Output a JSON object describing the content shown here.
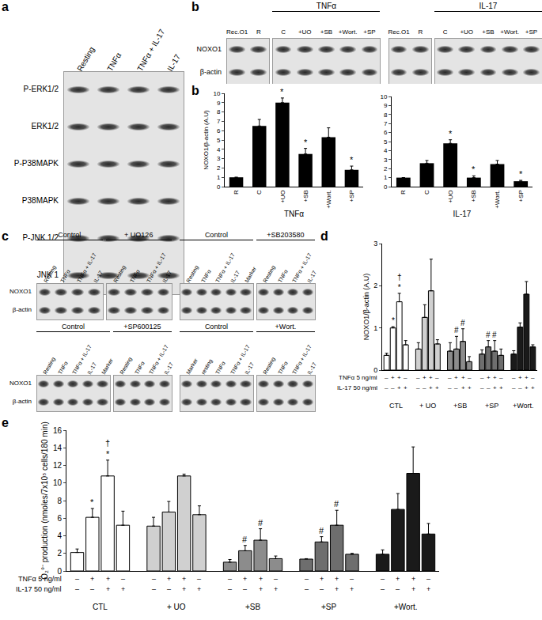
{
  "chart_data": [
    {
      "panel": "b",
      "type": "bar",
      "categories": [
        "R",
        "C",
        "+UO",
        "+SB",
        "+Wort.",
        "+SP"
      ],
      "values": [
        1,
        6.5,
        9,
        3.5,
        5.3,
        1.8
      ],
      "errors": [
        0,
        0.7,
        0.5,
        0.6,
        1.0,
        0.4
      ],
      "color": "#000000",
      "ylim": [
        0,
        10
      ],
      "yticks": [
        0,
        1,
        2,
        3,
        4,
        5,
        6,
        7,
        8,
        9,
        10
      ],
      "y_label": "NOXO1/β-actin (A.U)",
      "x_label": "TNFα",
      "annotations": [
        {
          "category": "+UO",
          "text": [
            "*"
          ]
        },
        {
          "category": "+SB",
          "text": [
            "*"
          ]
        },
        {
          "category": "+SP",
          "text": [
            "*"
          ]
        }
      ]
    },
    {
      "type": "bar",
      "categories": [
        "R",
        "C",
        "+UO",
        "+SB",
        "+Wort.",
        "+SP"
      ],
      "values": [
        1,
        2.6,
        4.8,
        1.0,
        2.5,
        0.6
      ],
      "errors": [
        0,
        0.3,
        0.4,
        0.2,
        0.4,
        0.1
      ],
      "color": "#000000",
      "ylim": [
        0,
        10
      ],
      "yticks": [
        0,
        1,
        2,
        3,
        4,
        5,
        6,
        7,
        8,
        9,
        10
      ],
      "x_label": "IL-17",
      "annotations": [
        {
          "category": "+UO",
          "text": [
            "*"
          ]
        },
        {
          "category": "+SB",
          "text": [
            "*"
          ]
        },
        {
          "category": "+SP",
          "text": [
            "*"
          ]
        }
      ]
    },
    {
      "panel": "d",
      "type": "grouped_bar",
      "groups": [
        {
          "name": "CTL",
          "color": "#ffffff",
          "values": [
            0.35,
            1.0,
            1.62,
            0.6
          ],
          "errors": [
            0.05,
            0.03,
            0.2,
            0.1
          ]
        },
        {
          "name": "+ UO",
          "color": "#d0d0d0",
          "values": [
            0.5,
            1.25,
            1.88,
            0.62
          ],
          "errors": [
            0.15,
            0.3,
            0.75,
            0.1
          ]
        },
        {
          "name": "+SB",
          "color": "#8c8c8c",
          "values": [
            0.45,
            0.5,
            0.68,
            0.2
          ],
          "errors": [
            0.2,
            0.3,
            0.3,
            0.12
          ]
        },
        {
          "name": "+SP",
          "color": "#6e6e6e",
          "values": [
            0.38,
            0.55,
            0.45,
            0.35
          ],
          "errors": [
            0.1,
            0.15,
            0.25,
            0.15
          ]
        },
        {
          "name": "+Wort.",
          "color": "#1a1a1a",
          "values": [
            0.38,
            1.02,
            1.8,
            0.55
          ],
          "errors": [
            0.08,
            0.1,
            0.3,
            0.05
          ]
        }
      ],
      "conditions": [
        {
          "label": "TNFα 5 ng/ml",
          "signs": [
            "–",
            "+",
            "+",
            "–"
          ]
        },
        {
          "label": "IL-17 50 ng/ml",
          "signs": [
            "–",
            "–",
            "+",
            "+"
          ]
        }
      ],
      "ylim": [
        0,
        3
      ],
      "yticks": [
        0,
        1,
        2,
        3
      ],
      "y_label": "NOXO1/β-actin (A.U)",
      "annotations": [
        {
          "group": "CTL",
          "bar": 1,
          "text": [
            "*"
          ]
        },
        {
          "group": "CTL",
          "bar": 2,
          "text": [
            "†",
            "*"
          ]
        },
        {
          "group": "+SB",
          "bar": 1,
          "text": [
            "#"
          ]
        },
        {
          "group": "+SB",
          "bar": 2,
          "text": [
            "#"
          ]
        },
        {
          "group": "+SP",
          "bar": 1,
          "text": [
            "#"
          ]
        },
        {
          "group": "+SP",
          "bar": 2,
          "text": [
            "#"
          ]
        }
      ]
    },
    {
      "panel": "e",
      "type": "grouped_bar",
      "groups": [
        {
          "name": "CTL",
          "color": "#ffffff",
          "values": [
            2.1,
            6.1,
            10.8,
            5.2
          ],
          "errors": [
            0.4,
            1.0,
            1.8,
            1.6
          ]
        },
        {
          "name": "+ UO",
          "color": "#d0d0d0",
          "values": [
            5.1,
            6.7,
            10.8,
            6.4
          ],
          "errors": [
            1.0,
            1.2,
            0.2,
            1.0
          ]
        },
        {
          "name": "+SB",
          "color": "#8c8c8c",
          "values": [
            1.0,
            2.3,
            3.5,
            1.4
          ],
          "errors": [
            0.3,
            0.6,
            1.3,
            0.3
          ]
        },
        {
          "name": "+SP",
          "color": "#6e6e6e",
          "values": [
            1.35,
            3.3,
            5.2,
            1.9
          ],
          "errors": [
            0.05,
            0.6,
            1.7,
            0.1
          ]
        },
        {
          "name": "+Wort.",
          "color": "#1a1a1a",
          "values": [
            1.9,
            7.0,
            11.1,
            4.2
          ],
          "errors": [
            0.5,
            1.8,
            3.0,
            1.2
          ]
        }
      ],
      "conditions": [
        {
          "label": "TNFα 5 ng/ml",
          "signs": [
            "–",
            "+",
            "+",
            "–"
          ]
        },
        {
          "label": "IL-17 50 ng/ml",
          "signs": [
            "–",
            "–",
            "+",
            "+"
          ]
        }
      ],
      "ylim": [
        0,
        16
      ],
      "yticks": [
        0,
        2,
        4,
        6,
        8,
        10,
        12,
        14,
        16
      ],
      "y_label": "O₂°⁻ production (nmoles/7x10⁵ cells/180 min)",
      "annotations": [
        {
          "group": "CTL",
          "bar": 1,
          "text": [
            "*"
          ]
        },
        {
          "group": "CTL",
          "bar": 2,
          "text": [
            "†",
            "*"
          ]
        },
        {
          "group": "+SB",
          "bar": 1,
          "text": [
            "#"
          ]
        },
        {
          "group": "+SB",
          "bar": 2,
          "text": [
            "#"
          ]
        },
        {
          "group": "+SP",
          "bar": 1,
          "text": [
            "#"
          ]
        },
        {
          "group": "+SP",
          "bar": 2,
          "text": [
            "#"
          ]
        }
      ]
    }
  ],
  "blots": [
    {
      "panel": "a",
      "rows": [
        "P-ERK1/2",
        "ERK1/2",
        "P-P38MAPK",
        "P38MAPK",
        "P-JNK 1/2",
        "JNK 1"
      ],
      "strips": [
        {
          "groups": [
            {
              "lanes": [
                "Resting",
                "TNFα",
                "TNFα + IL-17",
                "IL-17"
              ]
            }
          ]
        }
      ]
    },
    {
      "panel": "b",
      "rows": [
        "NOXO1",
        "β-actin"
      ],
      "strips": [
        {
          "groups": [
            {
              "lanes": [
                "Rec.O1",
                "R"
              ]
            },
            {
              "title": "TNFα",
              "lanes": [
                "C",
                "+UO",
                "+SB",
                "+Wort.",
                "+SP"
              ]
            }
          ]
        },
        {
          "groups": [
            {
              "lanes": [
                "Rec.O1",
                "R"
              ]
            },
            {
              "title": "IL-17",
              "lanes": [
                "C",
                "+UO",
                "+SB",
                "+Wort.",
                "+SP"
              ]
            }
          ]
        }
      ]
    },
    {
      "panel": "c",
      "rows": [
        "NOXO1",
        "β-actin"
      ],
      "strips": [
        {
          "groups": [
            {
              "title": "Control",
              "lanes": [
                "Resting",
                "TNFα",
                "TNFα + IL-17",
                "IL-17"
              ]
            },
            {
              "title": "+ UO126",
              "lanes": [
                "Resting",
                "TNFα",
                "TNFα + IL-17",
                "IL-17"
              ]
            }
          ]
        },
        {
          "groups": [
            {
              "title": "Control",
              "lanes": [
                "Resting",
                "TNFα",
                "TNFα + IL-17",
                "IL-17",
                "Marker"
              ]
            },
            {
              "title": "+SB203580",
              "lanes": [
                "Resting",
                "TNFα",
                "TNFα + IL-17",
                "IL-17"
              ]
            }
          ]
        }
      ]
    },
    {
      "rows": [
        "NOXO1",
        "β-actin"
      ],
      "strips": [
        {
          "groups": [
            {
              "title": "Control",
              "lanes": [
                "Resting",
                "TNFα",
                "TNFα + IL-17",
                "IL-17",
                "Marker"
              ]
            },
            {
              "title": "+SP600125",
              "lanes": [
                "Resting",
                "TNFα",
                "TNFα + IL-17",
                "IL-17"
              ]
            }
          ]
        },
        {
          "groups": [
            {
              "title": "Control",
              "lanes": [
                "Marker",
                "resting",
                "TNFα",
                "TNFα + IL-17",
                "IL-17"
              ]
            },
            {
              "title": "+Wort.",
              "lanes": [
                "Resting",
                "TNFα",
                "TNFα + IL-17",
                "IL-17"
              ]
            }
          ]
        }
      ]
    }
  ]
}
